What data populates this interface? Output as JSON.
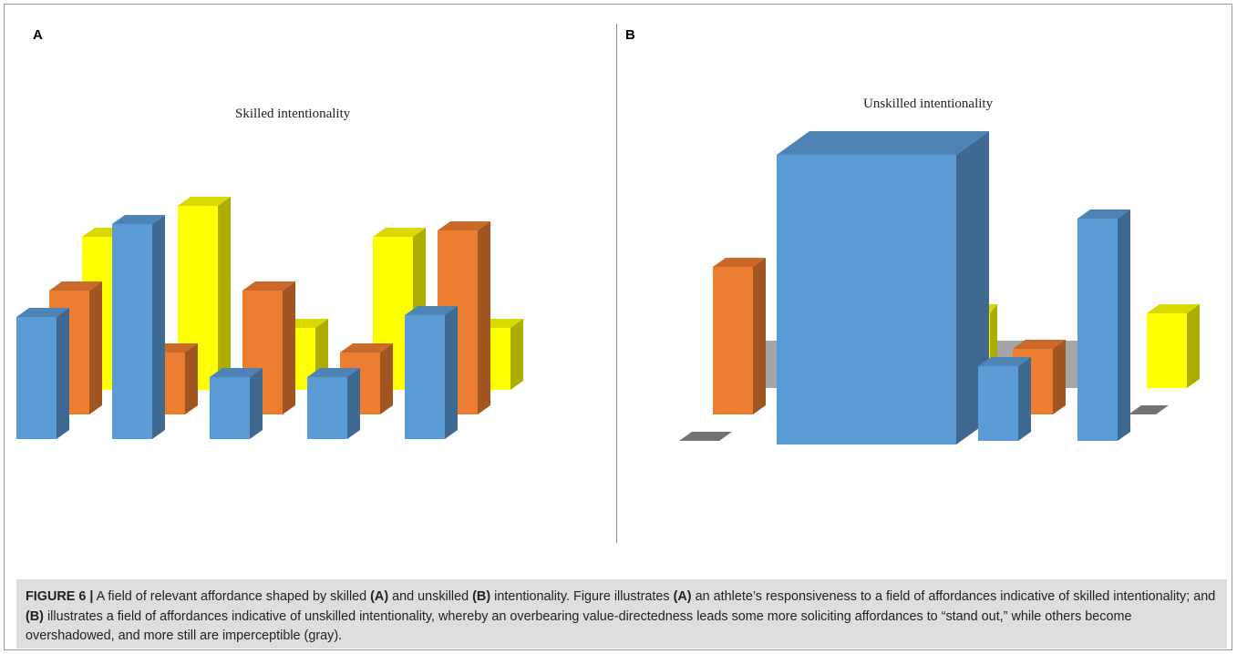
{
  "panels": {
    "a": {
      "letter": "A",
      "title": "Skilled intentionality"
    },
    "b": {
      "letter": "B",
      "title": "Unskilled intentionality"
    }
  },
  "caption": {
    "label": "FIGURE 6 |",
    "p1": " A field of relevant affordance shaped by skilled ",
    "a1": "(A)",
    "p2": " and unskilled ",
    "b1": "(B)",
    "p3": " intentionality. Figure illustrates ",
    "a2": "(A)",
    "p4": " an athlete’s responsiveness to a field of affordances indicative of skilled intentionality; and ",
    "b2": "(B)",
    "p5": " illustrates a field of affordances indicative of unskilled intentionality, whereby an overbearing value-directedness leads some more soliciting affordances to “stand out,” while others become overshadowed, and more still are imperceptible (gray)."
  },
  "colors": {
    "blue": "#5b9bd5",
    "orange": "#ed7d31",
    "yellow": "#ffff00",
    "gray": "#a5a5a5"
  },
  "chart_data": [
    {
      "type": "bar",
      "style": "3d-column",
      "title": "Skilled intentionality",
      "rows": [
        "blue",
        "orange",
        "yellow"
      ],
      "categories": 5,
      "series": [
        {
          "color": "blue",
          "values": [
            134,
            236,
            68,
            68,
            136
          ]
        },
        {
          "color": "orange",
          "values": [
            136,
            68,
            136,
            68,
            202
          ]
        },
        {
          "color": "yellow",
          "values": [
            168,
            202,
            68,
            168,
            68
          ]
        }
      ]
    },
    {
      "type": "bar",
      "style": "3d-column",
      "title": "Unskilled intentionality",
      "rows": [
        "blue",
        "orange",
        "yellow",
        "gray"
      ],
      "categories": 5,
      "series": [
        {
          "color": "blue",
          "values": [
            0,
            318,
            82,
            0,
            244
          ]
        },
        {
          "color": "orange",
          "values": [
            162,
            0,
            0,
            72,
            0
          ]
        },
        {
          "color": "yellow",
          "values": [
            0,
            0,
            82,
            0,
            82
          ]
        },
        {
          "color": "gray",
          "values": [
            0,
            0,
            0,
            0,
            0
          ]
        }
      ]
    }
  ]
}
